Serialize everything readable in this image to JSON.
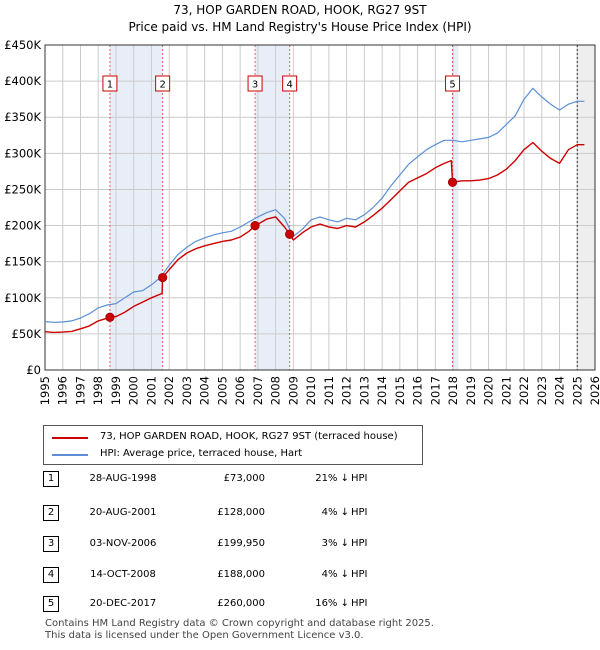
{
  "title_line1": "73, HOP GARDEN ROAD, HOOK, RG27 9ST",
  "title_line2": "Price paid vs. HM Land Registry's House Price Index (HPI)",
  "legend": {
    "property_label": "73, HOP GARDEN ROAD, HOOK, RG27 9ST (terraced house)",
    "hpi_label": "HPI: Average price, terraced house, Hart"
  },
  "colors": {
    "property": "#cc0000",
    "hpi": "#5b8fd6",
    "band": "#e8eef8",
    "grid": "#cccccc",
    "marker_border": "#cc0000"
  },
  "sales": [
    {
      "num": "1",
      "date": "28-AUG-1998",
      "price": "£73,000",
      "pct": "21% ↓",
      "hpi": "HPI"
    },
    {
      "num": "2",
      "date": "20-AUG-2001",
      "price": "£128,000",
      "pct": "4% ↓",
      "hpi": "HPI"
    },
    {
      "num": "3",
      "date": "03-NOV-2006",
      "price": "£199,950",
      "pct": "3% ↓",
      "hpi": "HPI"
    },
    {
      "num": "4",
      "date": "14-OCT-2008",
      "price": "£188,000",
      "pct": "4% ↓",
      "hpi": "HPI"
    },
    {
      "num": "5",
      "date": "20-DEC-2017",
      "price": "£260,000",
      "pct": "16% ↓",
      "hpi": "HPI"
    }
  ],
  "footer_line1": "Contains HM Land Registry data © Crown copyright and database right 2025.",
  "footer_line2": "This data is licensed under the Open Government Licence v3.0.",
  "chart_data": {
    "type": "line",
    "title": "73, HOP GARDEN ROAD, HOOK, RG27 9ST",
    "subtitle": "Price paid vs. HM Land Registry's House Price Index (HPI)",
    "xlabel": "",
    "ylabel": "",
    "xlim": [
      1995,
      2026
    ],
    "ylim": [
      0,
      450000
    ],
    "grid": true,
    "legend_position": "below",
    "x_ticks": [
      1995,
      1996,
      1997,
      1998,
      1999,
      2000,
      2001,
      2002,
      2003,
      2004,
      2005,
      2006,
      2007,
      2008,
      2009,
      2010,
      2011,
      2012,
      2013,
      2014,
      2015,
      2016,
      2017,
      2018,
      2019,
      2020,
      2021,
      2022,
      2023,
      2024,
      2025,
      2026
    ],
    "y_ticks": [
      {
        "value": 0,
        "label": "£0"
      },
      {
        "value": 50000,
        "label": "£50K"
      },
      {
        "value": 100000,
        "label": "£100K"
      },
      {
        "value": 150000,
        "label": "£150K"
      },
      {
        "value": 200000,
        "label": "£200K"
      },
      {
        "value": 250000,
        "label": "£250K"
      },
      {
        "value": 300000,
        "label": "£300K"
      },
      {
        "value": 350000,
        "label": "£350K"
      },
      {
        "value": 400000,
        "label": "£400K"
      },
      {
        "value": 450000,
        "label": "£450K"
      }
    ],
    "shaded_periods": [
      [
        1998.66,
        2001.63
      ],
      [
        2006.84,
        2008.79
      ],
      [
        2017.97,
        2018.3
      ],
      [
        2025.0,
        2026.0
      ]
    ],
    "sale_markers": [
      {
        "label": "1",
        "x": 1998.66,
        "y": 73000
      },
      {
        "label": "2",
        "x": 2001.63,
        "y": 128000
      },
      {
        "label": "3",
        "x": 2006.84,
        "y": 199950
      },
      {
        "label": "4",
        "x": 2008.79,
        "y": 188000
      },
      {
        "label": "5",
        "x": 2017.97,
        "y": 260000
      }
    ],
    "series": [
      {
        "name": "HPI: Average price, terraced house, Hart",
        "color": "#5b8fd6",
        "x": [
          1995.0,
          1995.5,
          1996.0,
          1996.5,
          1997.0,
          1997.5,
          1998.0,
          1998.5,
          1999.0,
          1999.5,
          2000.0,
          2000.5,
          2001.0,
          2001.5,
          2002.0,
          2002.5,
          2003.0,
          2003.5,
          2004.0,
          2004.5,
          2005.0,
          2005.5,
          2006.0,
          2006.5,
          2007.0,
          2007.5,
          2008.0,
          2008.5,
          2009.0,
          2009.5,
          2010.0,
          2010.5,
          2011.0,
          2011.5,
          2012.0,
          2012.5,
          2013.0,
          2013.5,
          2014.0,
          2014.5,
          2015.0,
          2015.5,
          2016.0,
          2016.5,
          2017.0,
          2017.5,
          2018.0,
          2018.5,
          2019.0,
          2019.5,
          2020.0,
          2020.5,
          2021.0,
          2021.5,
          2022.0,
          2022.5,
          2023.0,
          2023.5,
          2024.0,
          2024.5,
          2025.0,
          2025.4
        ],
        "values": [
          67000,
          66000,
          66500,
          68000,
          72000,
          78000,
          86000,
          90000,
          92000,
          100000,
          108000,
          110000,
          118000,
          128000,
          145000,
          160000,
          170000,
          178000,
          183000,
          187000,
          190000,
          192000,
          198000,
          205000,
          212000,
          218000,
          222000,
          210000,
          185000,
          195000,
          208000,
          212000,
          208000,
          205000,
          210000,
          208000,
          215000,
          225000,
          238000,
          255000,
          270000,
          285000,
          295000,
          305000,
          312000,
          318000,
          318000,
          316000,
          318000,
          320000,
          322000,
          328000,
          340000,
          352000,
          375000,
          390000,
          378000,
          368000,
          360000,
          368000,
          372000,
          372000
        ]
      },
      {
        "name": "73, HOP GARDEN ROAD, HOOK, RG27 9ST (terraced house)",
        "color": "#cc0000",
        "x": [
          1995.0,
          1995.5,
          1996.0,
          1996.5,
          1997.0,
          1997.5,
          1998.0,
          1998.66,
          1999.0,
          1999.5,
          2000.0,
          2000.5,
          2001.0,
          2001.6,
          2001.63,
          2002.0,
          2002.5,
          2003.0,
          2003.5,
          2004.0,
          2004.5,
          2005.0,
          2005.5,
          2006.0,
          2006.5,
          2006.84,
          2007.0,
          2007.5,
          2008.0,
          2008.5,
          2008.79,
          2009.0,
          2009.5,
          2010.0,
          2010.5,
          2011.0,
          2011.5,
          2012.0,
          2012.5,
          2013.0,
          2013.5,
          2014.0,
          2014.5,
          2015.0,
          2015.5,
          2016.0,
          2016.5,
          2017.0,
          2017.5,
          2017.9,
          2017.97,
          2018.5,
          2019.0,
          2019.5,
          2020.0,
          2020.5,
          2021.0,
          2021.5,
          2022.0,
          2022.5,
          2023.0,
          2023.5,
          2024.0,
          2024.5,
          2025.0,
          2025.4
        ],
        "values": [
          53000,
          52000,
          52500,
          53500,
          57000,
          61000,
          68000,
          73000,
          74000,
          80000,
          88000,
          94000,
          100000,
          106000,
          128000,
          139000,
          153000,
          162000,
          168000,
          172000,
          175000,
          178000,
          180000,
          184000,
          192000,
          199950,
          202000,
          209000,
          212000,
          198000,
          188000,
          180000,
          190000,
          198000,
          202000,
          198000,
          196000,
          200000,
          198000,
          205000,
          214000,
          224000,
          236000,
          248000,
          260000,
          266000,
          272000,
          280000,
          286000,
          290000,
          260000,
          262000,
          262000,
          263000,
          265000,
          270000,
          278000,
          290000,
          305000,
          315000,
          303000,
          293000,
          286000,
          305000,
          312000,
          312000
        ]
      }
    ]
  }
}
